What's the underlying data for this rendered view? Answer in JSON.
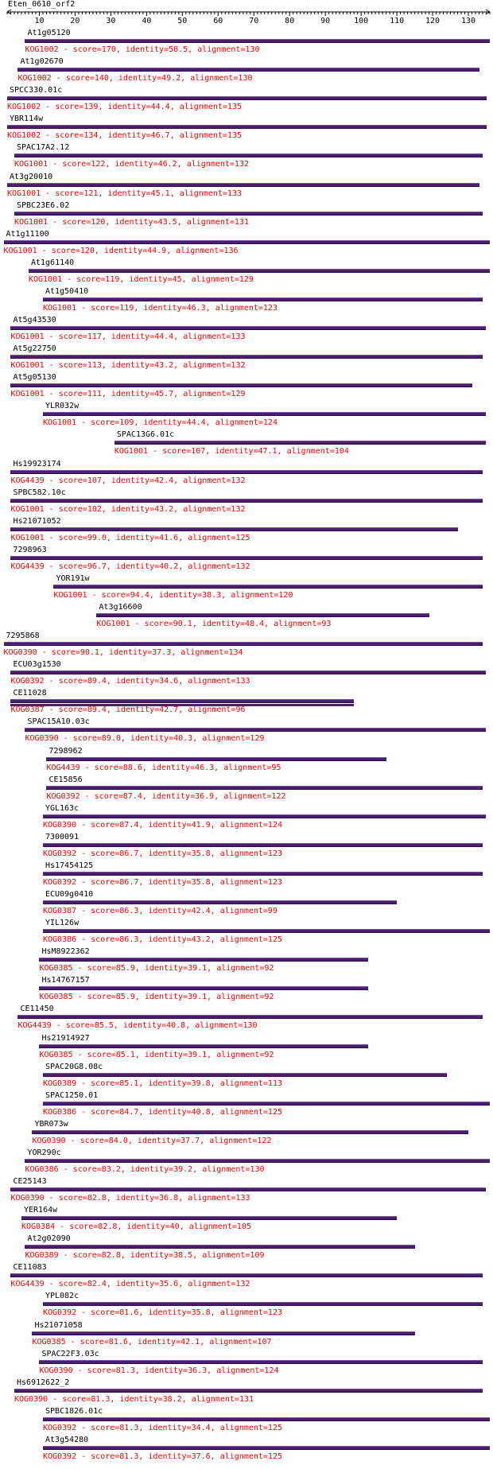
{
  "query": "Eten_0610_orf2",
  "axis": {
    "min": 1,
    "max": 136,
    "ticks": [
      10,
      20,
      30,
      40,
      50,
      60,
      70,
      80,
      90,
      100,
      110,
      120,
      130
    ]
  },
  "hits": [
    {
      "name": "At1g05120",
      "start": 6,
      "end": 136,
      "desc": "KOG1002 - score=170, identity=58.5, alignment=130"
    },
    {
      "name": "At1g02670",
      "start": 4,
      "end": 133,
      "desc": "KOG1002 - score=140, identity=49.2, alignment=130"
    },
    {
      "name": "SPCC330.01c",
      "start": 1,
      "end": 135,
      "desc": "KOG1002 - score=139, identity=44.4, alignment=135"
    },
    {
      "name": "YBR114w",
      "start": 1,
      "end": 135,
      "desc": "KOG1002 - score=134, identity=46.7, alignment=135"
    },
    {
      "name": "SPAC17A2.12",
      "start": 3,
      "end": 134,
      "desc": "KOG1001 - score=122, identity=46.2, alignment=132"
    },
    {
      "name": "At3g20010",
      "start": 1,
      "end": 133,
      "desc": "KOG1001 - score=121, identity=45.1, alignment=133"
    },
    {
      "name": "SPBC23E6.02",
      "start": 3,
      "end": 134,
      "desc": "KOG1001 - score=120, identity=43.5, alignment=131"
    },
    {
      "name": "At1g11100",
      "start": 0,
      "end": 136,
      "desc": "KOG1001 - score=120, identity=44.9, alignment=136"
    },
    {
      "name": "At1g61140",
      "start": 7,
      "end": 136,
      "desc": "KOG1001 - score=119, identity=45, alignment=129"
    },
    {
      "name": "At1g50410",
      "start": 11,
      "end": 134,
      "desc": "KOG1001 - score=119, identity=46.3, alignment=123"
    },
    {
      "name": "At5g43530",
      "start": 2,
      "end": 135,
      "desc": "KOG1001 - score=117, identity=44.4, alignment=133"
    },
    {
      "name": "At5g22750",
      "start": 2,
      "end": 134,
      "desc": "KOG1001 - score=113, identity=43.2, alignment=132"
    },
    {
      "name": "At5g05130",
      "start": 2,
      "end": 131,
      "desc": "KOG1001 - score=111, identity=45.7, alignment=129"
    },
    {
      "name": "YLR032w",
      "start": 11,
      "end": 135,
      "desc": "KOG1001 - score=109, identity=44.4, alignment=124"
    },
    {
      "name": "SPAC13G6.01c",
      "start": 31,
      "end": 135,
      "desc": "KOG1001 - score=107, identity=47.1, alignment=104"
    },
    {
      "name": "Hs19923174",
      "start": 2,
      "end": 134,
      "desc": "KOG4439 - score=107, identity=42.4, alignment=132"
    },
    {
      "name": "SPBC582.10c",
      "start": 2,
      "end": 134,
      "desc": "KOG1001 - score=102, identity=43.2, alignment=132"
    },
    {
      "name": "Hs21071052",
      "start": 2,
      "end": 127,
      "desc": "KOG1001 - score=99.0, identity=41.6, alignment=125"
    },
    {
      "name": "7298963",
      "start": 2,
      "end": 134,
      "desc": "KOG4439 - score=96.7, identity=40.2, alignment=132"
    },
    {
      "name": "YOR191w",
      "start": 14,
      "end": 134,
      "desc": "KOG1001 - score=94.4, identity=38.3, alignment=120"
    },
    {
      "name": "At3g16600",
      "start": 26,
      "end": 119,
      "desc": "KOG1001 - score=90.1, identity=48.4, alignment=93"
    },
    {
      "name": "7295868",
      "start": 0,
      "end": 134,
      "desc": "KOG0390 - score=90.1, identity=37.3, alignment=134"
    },
    {
      "name": "ECU03g1530",
      "start": 2,
      "end": 135,
      "desc": "KOG0392 - score=89.4, identity=34.6, alignment=133"
    },
    {
      "name": "CE11028",
      "start": 2,
      "end": 98,
      "desc": "KOG0387 - score=89.4, identity=42.7, alignment=96",
      "double": true
    },
    {
      "name": "SPAC15A10.03c",
      "start": 6,
      "end": 135,
      "desc": "KOG0390 - score=89.0, identity=40.3, alignment=129"
    },
    {
      "name": "7298962",
      "start": 12,
      "end": 107,
      "desc": "KOG4439 - score=88.6, identity=46.3, alignment=95"
    },
    {
      "name": "CE15856",
      "start": 12,
      "end": 134,
      "desc": "KOG0392 - score=87.4, identity=36.9, alignment=122"
    },
    {
      "name": "YGL163c",
      "start": 11,
      "end": 135,
      "desc": "KOG0390 - score=87.4, identity=41.9, alignment=124"
    },
    {
      "name": "7300091",
      "start": 11,
      "end": 134,
      "desc": "KOG0392 - score=86.7, identity=35.8, alignment=123"
    },
    {
      "name": "Hs17454125",
      "start": 11,
      "end": 134,
      "desc": "KOG0392 - score=86.7, identity=35.8, alignment=123"
    },
    {
      "name": "ECU09g0410",
      "start": 11,
      "end": 110,
      "desc": "KOG0387 - score=86.3, identity=42.4, alignment=99"
    },
    {
      "name": "YIL126w",
      "start": 11,
      "end": 136,
      "desc": "KOG0386 - score=86.3, identity=43.2, alignment=125"
    },
    {
      "name": "HsM8922362",
      "start": 10,
      "end": 102,
      "desc": "KOG0385 - score=85.9, identity=39.1, alignment=92"
    },
    {
      "name": "Hs14767157",
      "start": 10,
      "end": 102,
      "desc": "KOG0385 - score=85.9, identity=39.1, alignment=92"
    },
    {
      "name": "CE11450",
      "start": 4,
      "end": 134,
      "desc": "KOG4439 - score=85.5, identity=40.8, alignment=130"
    },
    {
      "name": "Hs21914927",
      "start": 10,
      "end": 102,
      "desc": "KOG0385 - score=85.1, identity=39.1, alignment=92"
    },
    {
      "name": "SPAC20G8.08c",
      "start": 11,
      "end": 124,
      "desc": "KOG0389 - score=85.1, identity=39.8, alignment=113"
    },
    {
      "name": "SPAC1250.01",
      "start": 11,
      "end": 136,
      "desc": "KOG0386 - score=84.7, identity=40.8, alignment=125"
    },
    {
      "name": "YBR073w",
      "start": 8,
      "end": 130,
      "desc": "KOG0390 - score=84.0, identity=37.7, alignment=122"
    },
    {
      "name": "YOR290c",
      "start": 6,
      "end": 136,
      "desc": "KOG0386 - score=83.2, identity=39.2, alignment=130"
    },
    {
      "name": "CE25143",
      "start": 2,
      "end": 135,
      "desc": "KOG0390 - score=82.8, identity=36.8, alignment=133"
    },
    {
      "name": "YER164w",
      "start": 5,
      "end": 110,
      "desc": "KOG0384 - score=82.8, identity=40, alignment=105"
    },
    {
      "name": "At2g02090",
      "start": 6,
      "end": 115,
      "desc": "KOG0389 - score=82.8, identity=38.5, alignment=109"
    },
    {
      "name": "CE11083",
      "start": 2,
      "end": 134,
      "desc": "KOG4439 - score=82.4, identity=35.6, alignment=132"
    },
    {
      "name": "YPL082c",
      "start": 11,
      "end": 134,
      "desc": "KOG0392 - score=81.6, identity=35.8, alignment=123"
    },
    {
      "name": "Hs21071058",
      "start": 8,
      "end": 115,
      "desc": "KOG0385 - score=81.6, identity=42.1, alignment=107"
    },
    {
      "name": "SPAC22F3.03c",
      "start": 10,
      "end": 134,
      "desc": "KOG0390 - score=81.3, identity=36.3, alignment=124"
    },
    {
      "name": "Hs6912622_2",
      "start": 3,
      "end": 134,
      "desc": "KOG0390 - score=81.3, identity=38.2, alignment=131"
    },
    {
      "name": "SPBC1826.01c",
      "start": 11,
      "end": 136,
      "desc": "KOG0392 - score=81.3, identity=34.4, alignment=125"
    },
    {
      "name": "At3g54280",
      "start": 11,
      "end": 136,
      "desc": "KOG0392 - score=81.3, identity=37.6, alignment=125"
    }
  ],
  "colors": {
    "bar": "#4a1f6e",
    "desc": "#ff0000",
    "text": "#000000"
  }
}
